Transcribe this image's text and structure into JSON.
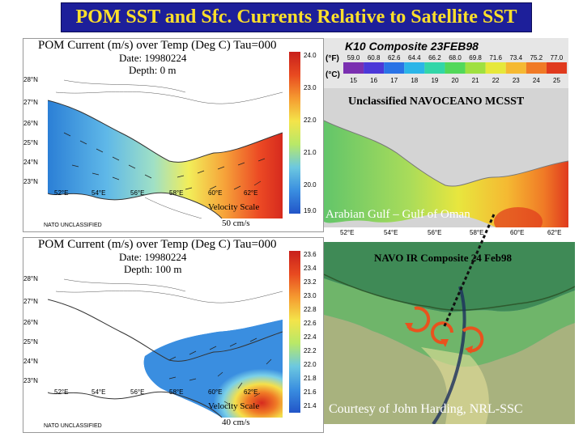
{
  "title": "POM SST and Sfc. Currents Relative to Satellite SST",
  "top_model": {
    "header": "POM Current (m/s) over Temp (Deg C)  Tau=000",
    "date": "Date: 19980224",
    "depth": "Depth: 0 m",
    "colorbar": [
      "24.0",
      "23.0",
      "22.0",
      "21.0",
      "20.0",
      "19.0"
    ],
    "lat_labels": [
      "28°N",
      "27°N",
      "26°N",
      "25°N",
      "24°N",
      "23°N"
    ],
    "lon_labels": [
      "52°E",
      "54°E",
      "56°E",
      "58°E",
      "60°E",
      "62°E"
    ],
    "velocity_scale": "Velocity Scale",
    "velocity_value": "50 cm/s",
    "classification": "NATO UNCLASSIFIED"
  },
  "bottom_model": {
    "header": "POM Current (m/s) over Temp (Deg C)  Tau=000",
    "date": "Date: 19980224",
    "depth": "Depth: 100 m",
    "colorbar": [
      "23.6",
      "23.4",
      "23.2",
      "23.0",
      "22.8",
      "22.6",
      "22.4",
      "22.2",
      "22.0",
      "21.8",
      "21.6",
      "21.4"
    ],
    "lat_labels": [
      "28°N",
      "27°N",
      "26°N",
      "25°N",
      "24°N",
      "23°N"
    ],
    "lon_labels": [
      "52°E",
      "54°E",
      "56°E",
      "58°E",
      "60°E",
      "62°E"
    ],
    "velocity_scale": "Velocity Scale",
    "velocity_value": "40 cm/s",
    "classification": "NATO UNCLASSIFIED"
  },
  "top_satellite": {
    "header": "K10 Composite 23FEB98",
    "f_label": "(°F)",
    "c_label": "(°C)",
    "f_values": [
      "59.0",
      "60.8",
      "62.6",
      "64.4",
      "66.2",
      "68.0",
      "69.8",
      "71.6",
      "73.4",
      "75.2",
      "77.0"
    ],
    "c_values": [
      "15",
      "16",
      "17",
      "18",
      "19",
      "20",
      "21",
      "22",
      "23",
      "24",
      "25"
    ],
    "scale_colors": [
      "#7a2fb0",
      "#4b38d8",
      "#2a73e6",
      "#2bb5e8",
      "#32d6a8",
      "#52d85a",
      "#9fe040",
      "#e6e83a",
      "#f5b932",
      "#f07a26",
      "#e03a1e"
    ],
    "classification": "Unclassified NAVOCEANO MCSST",
    "region": "Arabian Gulf – Gulf of Oman",
    "lon_labels": [
      "52°E",
      "54°E",
      "56°E",
      "58°E",
      "60°E",
      "62°E"
    ]
  },
  "bottom_satellite": {
    "header": "NAVO  IR Composite 24 Feb98",
    "credit": "Courtesy of John Harding, NRL-SSC"
  }
}
